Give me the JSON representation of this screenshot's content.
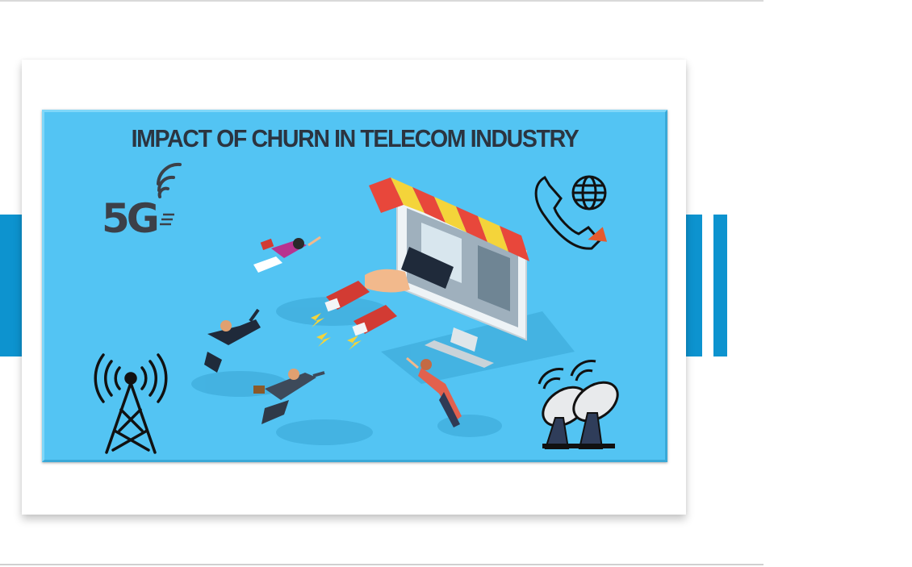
{
  "banner": {
    "title": "IMPACT OF CHURN IN TELECOM INDUSTRY",
    "badge_5g": "5G",
    "icons": [
      "5g-wifi-icon",
      "phone-globe-icon",
      "radio-tower-icon",
      "satellite-dishes-icon",
      "storefront-monitor-icon",
      "magnet-hand-icon"
    ]
  },
  "colors": {
    "accent_blue": "#0d93cf",
    "banner_bg": "#53c4f3",
    "title_text": "#2b3440",
    "awning_red": "#e8473b",
    "awning_yellow": "#f4d43a"
  }
}
